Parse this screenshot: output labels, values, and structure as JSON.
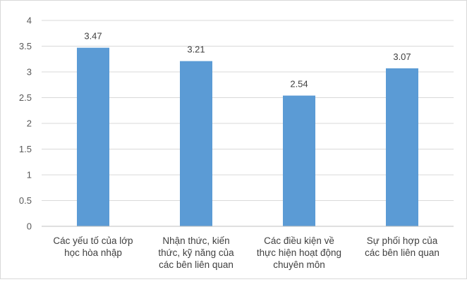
{
  "chart_data": {
    "type": "bar",
    "title": "",
    "xlabel": "",
    "ylabel": "",
    "categories": [
      [
        "Các yếu tố của lớp",
        "học hòa nhập"
      ],
      [
        "Nhận thức, kiến",
        "thức, kỹ năng của",
        "các bên liên quan"
      ],
      [
        "Các điều kiện về",
        "thực hiện hoạt động",
        "chuyên môn"
      ],
      [
        "Sự phối hợp của",
        "các bên liên quan"
      ]
    ],
    "values": [
      3.47,
      3.21,
      2.54,
      3.07
    ],
    "data_labels": [
      "3.47",
      "3.21",
      "2.54",
      "3.07"
    ],
    "ylim": [
      0,
      4
    ],
    "yticks": [
      0,
      0.5,
      1,
      1.5,
      2,
      2.5,
      3,
      3.5,
      4
    ],
    "ytick_labels": [
      "0",
      "0.5",
      "1",
      "1.5",
      "2",
      "2.5",
      "3",
      "3.5",
      "4"
    ],
    "grid": true,
    "legend": "none",
    "colors": {
      "bar": "#5b9bd5",
      "grid": "#d9d9d9",
      "axis": "#bfbfbf",
      "text": "#595959"
    }
  }
}
